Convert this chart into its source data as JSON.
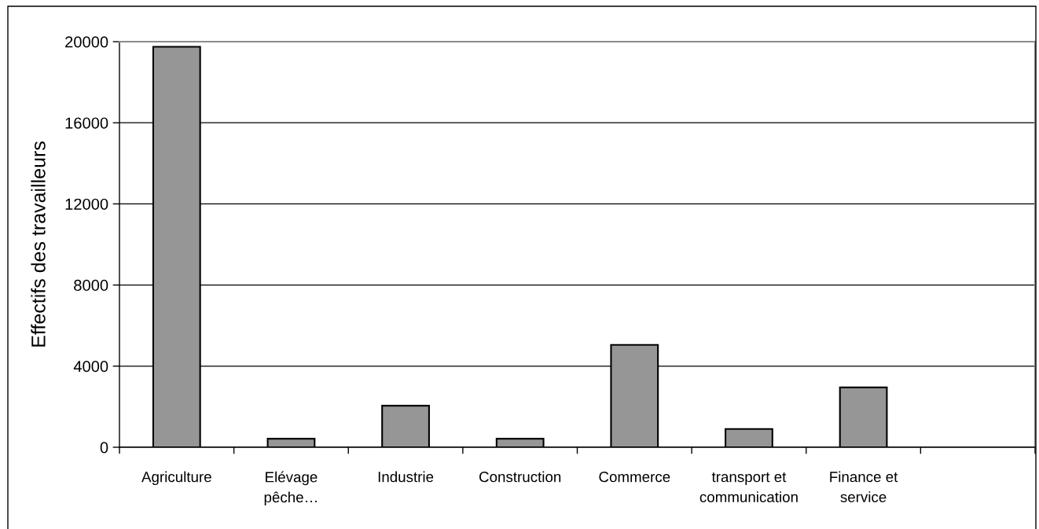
{
  "chart_data": {
    "type": "bar",
    "ylabel": "Effectifs des travailleurs",
    "categories": [
      "Agriculture",
      "Elévage\npêche…",
      "Industrie",
      "Construction",
      "Commerce",
      "transport et\ncommunication",
      "Finance et\nservice",
      null
    ],
    "values": [
      19750,
      420,
      2050,
      420,
      5050,
      900,
      2950,
      null
    ],
    "color": "#969696",
    "ylim": [
      0,
      20000
    ],
    "yticks": [
      0,
      4000,
      8000,
      12000,
      16000,
      20000
    ],
    "grid": "y"
  }
}
